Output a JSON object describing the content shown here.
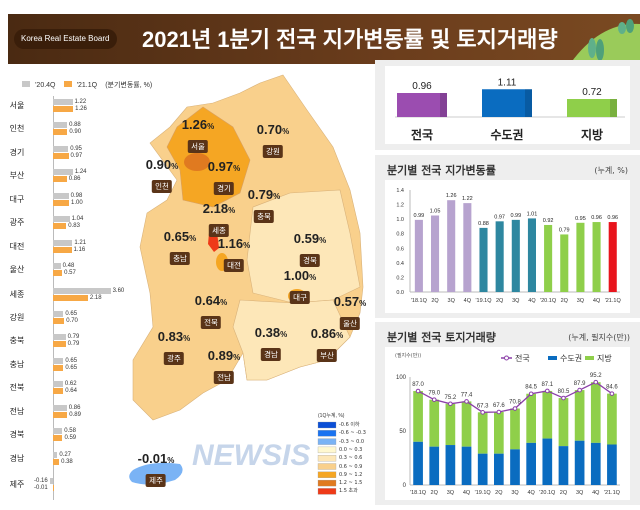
{
  "header": {
    "brand": "Korea Real Estate Board",
    "title": "2021년 1분기 전국 지가변동률 및 토지거래량"
  },
  "colors": {
    "prev": "#c8c8c8",
    "curr": "#f7a845",
    "national": "#9b4db0",
    "capital": "#0a6cc0",
    "regional": "#8fcf4a",
    "latest": "#e8141c",
    "early": "#b7a3cf",
    "mid": "#2e87a0"
  },
  "chart_data": [
    {
      "type": "bar",
      "id": "regional_bar",
      "legend": [
        "'20.4Q",
        "'21.1Q"
      ],
      "unit_note": "(분기변동률, %)",
      "categories": [
        "서울",
        "인천",
        "경기",
        "부산",
        "대구",
        "광주",
        "대전",
        "울산",
        "세종",
        "강원",
        "충북",
        "충남",
        "전북",
        "전남",
        "경북",
        "경남",
        "제주"
      ],
      "series": [
        {
          "name": "'20.4Q",
          "values": [
            1.22,
            0.88,
            0.95,
            1.24,
            0.98,
            1.04,
            1.21,
            0.48,
            3.6,
            0.65,
            0.79,
            0.65,
            0.62,
            0.86,
            0.58,
            0.27,
            -0.16
          ]
        },
        {
          "name": "'21.1Q",
          "values": [
            1.26,
            0.9,
            0.97,
            0.86,
            1.0,
            0.83,
            1.16,
            0.57,
            2.18,
            0.7,
            0.79,
            0.65,
            0.64,
            0.89,
            0.59,
            0.38,
            -0.01
          ]
        }
      ]
    },
    {
      "type": "map",
      "id": "choropleth",
      "legend_title": "(1Q누계, %)",
      "legend": [
        {
          "label": "-0.6 이하",
          "color": "#0b4fd6"
        },
        {
          "label": "-0.6 ~ -0.3",
          "color": "#1a73f0"
        },
        {
          "label": "-0.3 ~ 0.0",
          "color": "#7ab3f5"
        },
        {
          "label": "0.0 ~ 0.3",
          "color": "#fff8d0"
        },
        {
          "label": "0.3 ~ 0.6",
          "color": "#fde7b8"
        },
        {
          "label": "0.6 ~ 0.9",
          "color": "#f9d08c"
        },
        {
          "label": "0.9 ~ 1.2",
          "color": "#f5a623"
        },
        {
          "label": "1.2 ~ 1.5",
          "color": "#e07a20"
        },
        {
          "label": "1.5 초과",
          "color": "#ee3a18"
        }
      ],
      "regions": [
        {
          "name": "서울",
          "value": "1.26"
        },
        {
          "name": "인천",
          "value": "0.90"
        },
        {
          "name": "경기",
          "value": "0.97"
        },
        {
          "name": "강원",
          "value": "0.70"
        },
        {
          "name": "세종",
          "value": "2.18"
        },
        {
          "name": "충북",
          "value": "0.79"
        },
        {
          "name": "충남",
          "value": "0.65"
        },
        {
          "name": "대전",
          "value": "1.16"
        },
        {
          "name": "경북",
          "value": "0.59"
        },
        {
          "name": "대구",
          "value": "1.00"
        },
        {
          "name": "울산",
          "value": "0.57"
        },
        {
          "name": "전북",
          "value": "0.64"
        },
        {
          "name": "경남",
          "value": "0.38"
        },
        {
          "name": "부산",
          "value": "0.86"
        },
        {
          "name": "광주",
          "value": "0.83"
        },
        {
          "name": "전남",
          "value": "0.89"
        },
        {
          "name": "제주",
          "value": "-0.01"
        }
      ],
      "unit": "%"
    },
    {
      "type": "bar",
      "id": "summary",
      "categories": [
        "전국",
        "수도권",
        "지방"
      ],
      "values": [
        0.96,
        1.11,
        0.72
      ]
    },
    {
      "type": "bar",
      "id": "quarterly_rate",
      "title": "분기별 전국 지가변동률",
      "unit": "(누계, %)",
      "categories": [
        "'18.1Q",
        "2Q",
        "3Q",
        "4Q",
        "'19.1Q",
        "2Q",
        "3Q",
        "4Q",
        "'20.1Q",
        "2Q",
        "3Q",
        "4Q",
        "'21.1Q"
      ],
      "values": [
        0.99,
        1.05,
        1.26,
        1.22,
        0.88,
        0.97,
        0.99,
        1.01,
        0.92,
        0.79,
        0.95,
        0.96,
        0.96
      ],
      "ylim": [
        0,
        1.4
      ],
      "yticks": [
        "0.0",
        "0.2",
        "0.4",
        "0.6",
        "0.8",
        "1.0",
        "1.2",
        "1.4"
      ]
    },
    {
      "type": "bar+line",
      "id": "quarterly_volume",
      "title": "분기별 전국 토지거래량",
      "unit": "(누계, 필지수(만))",
      "ylabel": "(필지수(만))",
      "categories": [
        "'18.1Q",
        "2Q",
        "3Q",
        "4Q",
        "'19.1Q",
        "2Q",
        "3Q",
        "4Q",
        "'20.1Q",
        "2Q",
        "3Q",
        "4Q",
        "'21.1Q"
      ],
      "series": [
        {
          "name": "전국",
          "values": [
            87.0,
            79.0,
            75.2,
            77.4,
            67.3,
            67.6,
            70.8,
            84.5,
            87.1,
            80.5,
            87.9,
            95.2,
            84.6
          ]
        },
        {
          "name": "수도권",
          "values": [
            40,
            35.5,
            37,
            35.5,
            29,
            29,
            33,
            39,
            43,
            36,
            41,
            39,
            37.5
          ]
        },
        {
          "name": "지방",
          "values": [
            47,
            43.5,
            38.2,
            41.9,
            38.3,
            38.6,
            37.8,
            45.5,
            44.1,
            44.5,
            46.9,
            56.2,
            47.1
          ]
        }
      ],
      "ylim": [
        0,
        100
      ],
      "yticks": [
        "0",
        "50",
        "100"
      ]
    }
  ],
  "watermark": "NEWSIS"
}
